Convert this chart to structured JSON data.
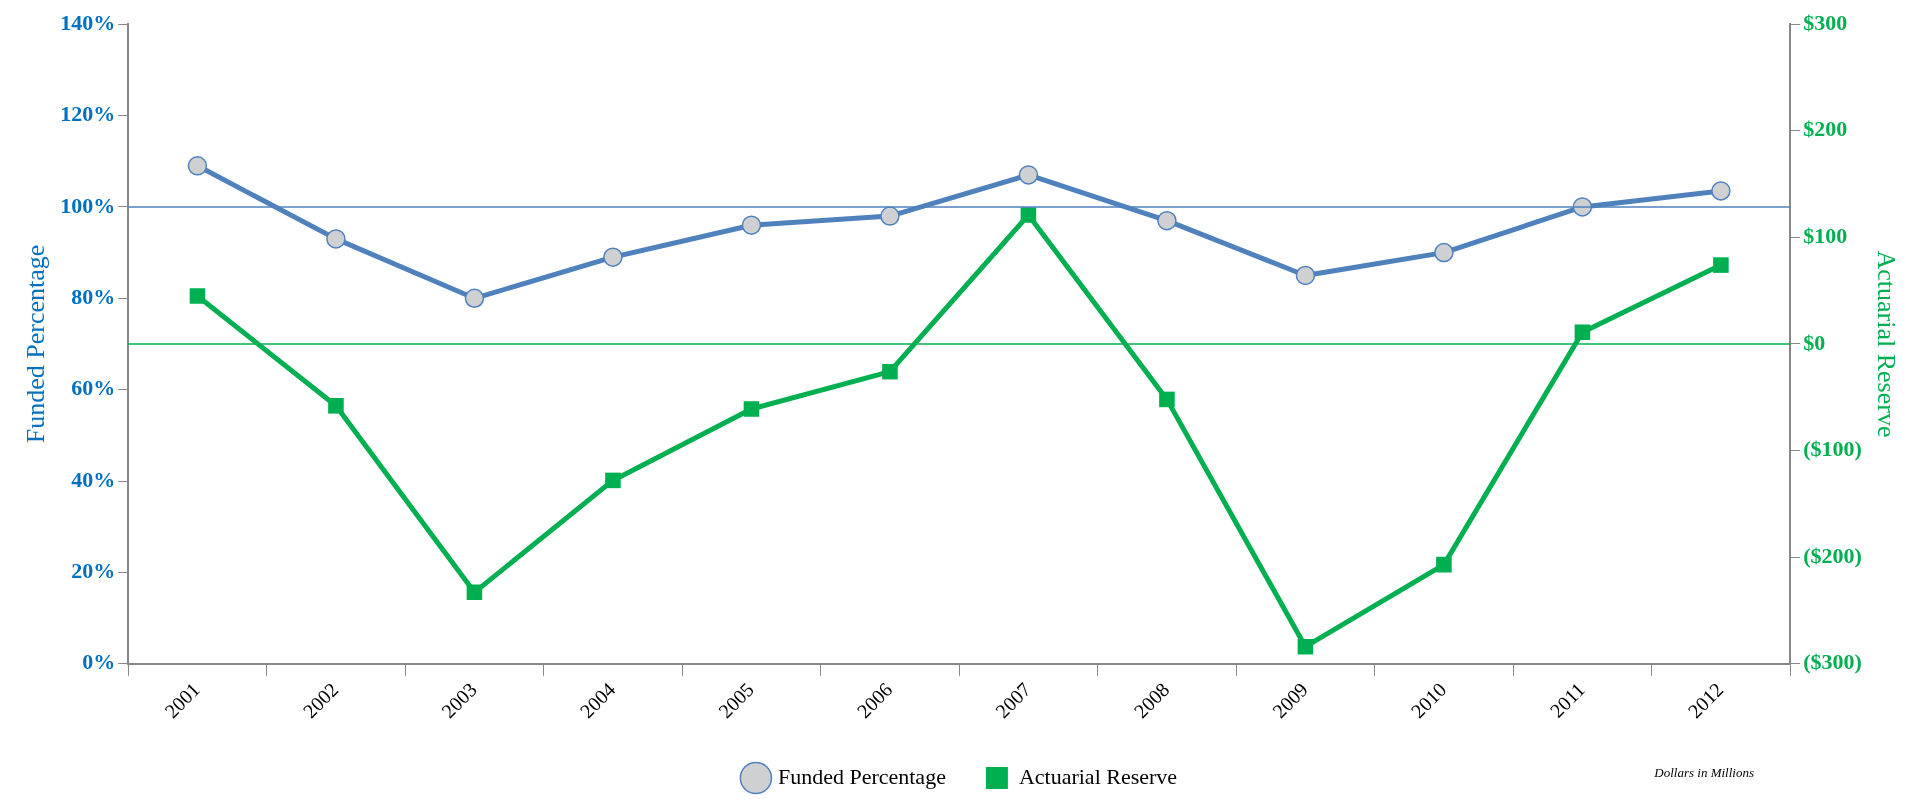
{
  "chart_data": {
    "type": "line",
    "ylabel": "Funded Percentage",
    "y2label": "Actuarial Reserve",
    "categories": [
      "2001",
      "2002",
      "2003",
      "2004",
      "2005",
      "2006",
      "2007",
      "2008",
      "2009",
      "2010",
      "2011",
      "2012"
    ],
    "series": [
      {
        "name": "Funded Percentage",
        "color": "#4f81bd",
        "marker": "circle",
        "values": [
          109,
          93,
          80,
          89,
          96,
          98,
          107,
          97,
          85,
          90,
          100,
          103.5
        ]
      },
      {
        "name": "Actuarial Reserve",
        "color": "#00b050",
        "marker": "square",
        "axis": "y2",
        "values": [
          45,
          -58,
          -233,
          -128,
          -61,
          -26,
          121,
          -52,
          -284,
          -207,
          11,
          74
        ]
      }
    ],
    "ylim": [
      0,
      140
    ],
    "yticks": [
      {
        "value": 0,
        "label": "0%"
      },
      {
        "value": 20,
        "label": "20%"
      },
      {
        "value": 40,
        "label": "40%"
      },
      {
        "value": 60,
        "label": "60%"
      },
      {
        "value": 80,
        "label": "80%"
      },
      {
        "value": 100,
        "label": "100%"
      },
      {
        "value": 120,
        "label": "120%"
      },
      {
        "value": 140,
        "label": "140%"
      }
    ],
    "y2lim": [
      -300,
      300
    ],
    "y2ticks": [
      {
        "value": -300,
        "label": "($300)"
      },
      {
        "value": -200,
        "label": "($200)"
      },
      {
        "value": -100,
        "label": "($100)"
      },
      {
        "value": 0,
        "label": "$0"
      },
      {
        "value": 100,
        "label": "$100"
      },
      {
        "value": 200,
        "label": "$200"
      },
      {
        "value": 300,
        "label": "$300"
      }
    ],
    "ref_lines": [
      {
        "axis": "y",
        "value": 100,
        "color": "#4f81bd"
      },
      {
        "axis": "y2",
        "value": 0,
        "color": "#00b050"
      }
    ],
    "annotations": [
      "Dollars in Millions"
    ],
    "grid": false,
    "legend": "bottom"
  }
}
